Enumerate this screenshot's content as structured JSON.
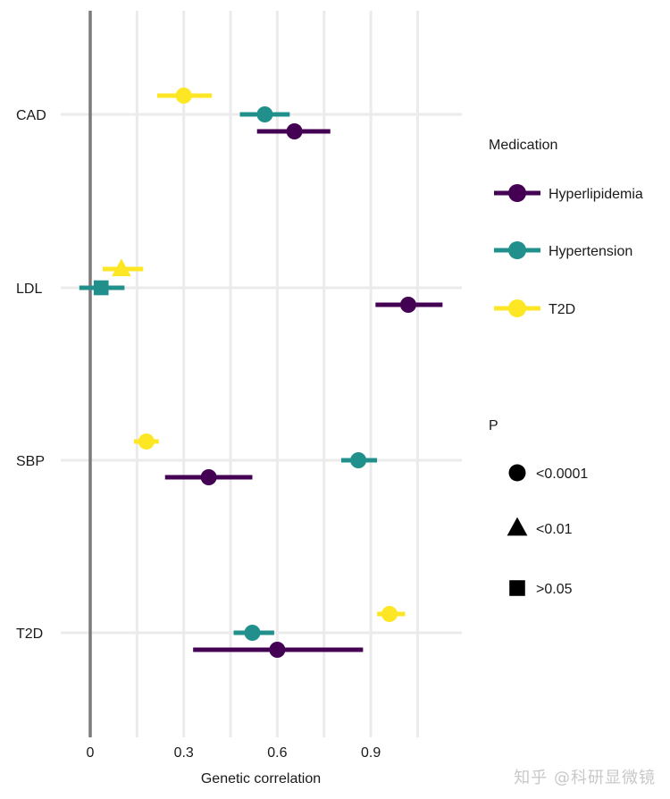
{
  "chart_data": {
    "type": "scatter",
    "subtype": "forest-plot",
    "title": "",
    "xlabel": "Genetic correlation",
    "ylabel": "",
    "xlim": [
      -0.09,
      1.19
    ],
    "x_ticks": [
      0,
      0.3,
      0.6,
      0.9
    ],
    "x_tick_labels": [
      "0",
      "0.3",
      "0.6",
      "0.9"
    ],
    "x_minor_grid": [
      0.15,
      0.45,
      0.75,
      1.05
    ],
    "reference_line": 0,
    "grid": true,
    "categories": [
      "CAD",
      "LDL",
      "SBP",
      "T2D"
    ],
    "series": [
      {
        "name": "Hyperlipidemia",
        "color": "#440154",
        "points": [
          {
            "category": "CAD",
            "estimate": 0.655,
            "lower": 0.535,
            "upper": 0.77,
            "p": "<0.0001"
          },
          {
            "category": "LDL",
            "estimate": 1.02,
            "lower": 0.915,
            "upper": 1.13,
            "p": "<0.0001"
          },
          {
            "category": "SBP",
            "estimate": 0.38,
            "lower": 0.24,
            "upper": 0.52,
            "p": "<0.0001"
          },
          {
            "category": "T2D",
            "estimate": 0.6,
            "lower": 0.33,
            "upper": 0.875,
            "p": "<0.0001"
          }
        ]
      },
      {
        "name": "Hypertension",
        "color": "#21908c",
        "points": [
          {
            "category": "CAD",
            "estimate": 0.56,
            "lower": 0.48,
            "upper": 0.64,
            "p": "<0.0001"
          },
          {
            "category": "LDL",
            "estimate": 0.035,
            "lower": -0.035,
            "upper": 0.11,
            "p": ">0.05"
          },
          {
            "category": "SBP",
            "estimate": 0.86,
            "lower": 0.805,
            "upper": 0.92,
            "p": "<0.0001"
          },
          {
            "category": "T2D",
            "estimate": 0.52,
            "lower": 0.46,
            "upper": 0.59,
            "p": "<0.0001"
          }
        ]
      },
      {
        "name": "T2D",
        "color": "#fde725",
        "points": [
          {
            "category": "CAD",
            "estimate": 0.3,
            "lower": 0.215,
            "upper": 0.39,
            "p": "<0.0001"
          },
          {
            "category": "LDL",
            "estimate": 0.1,
            "lower": 0.04,
            "upper": 0.17,
            "p": "<0.01"
          },
          {
            "category": "SBP",
            "estimate": 0.18,
            "lower": 0.14,
            "upper": 0.22,
            "p": "<0.0001"
          },
          {
            "category": "T2D",
            "estimate": 0.96,
            "lower": 0.92,
            "upper": 1.01,
            "p": "<0.0001"
          }
        ]
      }
    ],
    "legend_color": {
      "title": "Medication",
      "entries": [
        "Hyperlipidemia",
        "Hypertension",
        "T2D"
      ],
      "placement": "right"
    },
    "legend_shape": {
      "title": "P",
      "entries": [
        {
          "label": "<0.0001",
          "shape": "circle"
        },
        {
          "label": "<0.01",
          "shape": "triangle"
        },
        {
          "label": ">0.05",
          "shape": "square"
        }
      ],
      "placement": "right"
    }
  },
  "colors": {
    "grid": "#ebebeb",
    "reference_line": "#7a7a7a",
    "legend_shape_fill": "#000000"
  },
  "watermark": "知乎 @科研显微镜"
}
